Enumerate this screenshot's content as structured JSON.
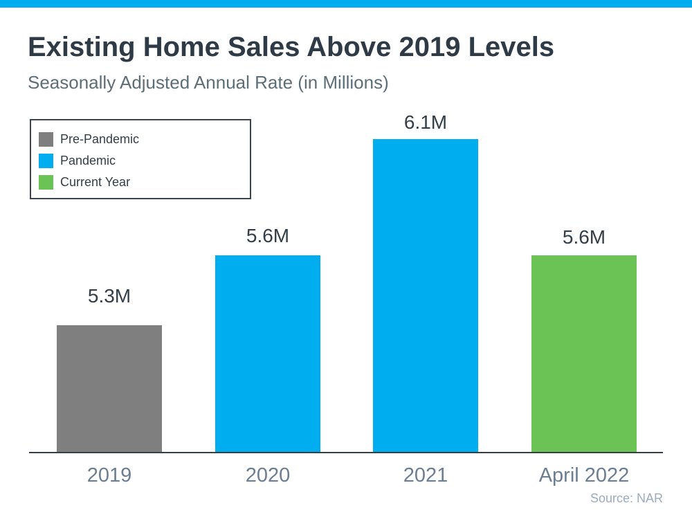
{
  "chart_data": {
    "type": "bar",
    "title": "Existing Home Sales Above 2019 Levels",
    "subtitle": "Seasonally Adjusted Annual Rate (in Millions)",
    "unit": "Millions",
    "categories": [
      "2019",
      "2020",
      "2021",
      "April 2022"
    ],
    "values": [
      5.3,
      5.6,
      6.1,
      5.6
    ],
    "bars": [
      {
        "category": "2019",
        "value": 5.3,
        "label": "5.3M",
        "color": "#7F7F7F",
        "series": "Pre-Pandemic"
      },
      {
        "category": "2020",
        "value": 5.6,
        "label": "5.6M",
        "color": "#00AEEF",
        "series": "Pandemic"
      },
      {
        "category": "2021",
        "value": 6.1,
        "label": "6.1M",
        "color": "#00AEEF",
        "series": "Pandemic"
      },
      {
        "category": "April 2022",
        "value": 5.6,
        "label": "5.6M",
        "color": "#6CC355",
        "series": "Current Year"
      }
    ],
    "legend": [
      {
        "label": "Pre-Pandemic",
        "color": "#7F7F7F"
      },
      {
        "label": "Pandemic",
        "color": "#00AEEF"
      },
      {
        "label": "Current Year",
        "color": "#6CC355"
      }
    ],
    "legend_position": "top-left",
    "grid": false,
    "y_axis_visible": false,
    "y_baseline": 4.75,
    "ylim": [
      4.75,
      6.25
    ],
    "accent_color": "#00AEEF",
    "source": "Source: NAR"
  }
}
